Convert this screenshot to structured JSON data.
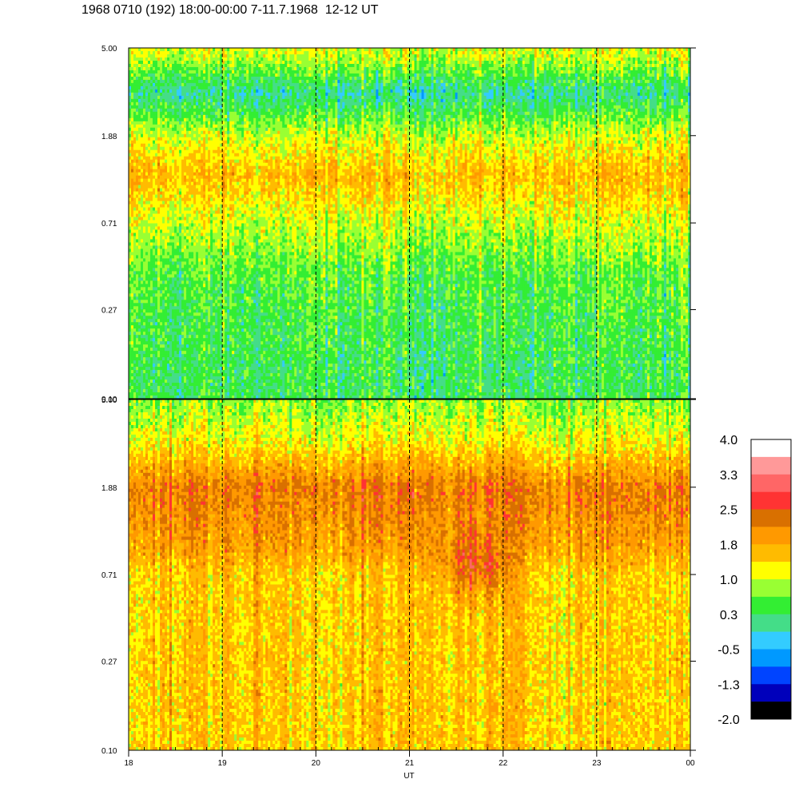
{
  "title": "1968 0710 (192) 18:00-00:00 7-11.7.1968  12-12 UT",
  "chart_data": [
    {
      "type": "heatmap",
      "panel": "upper",
      "x_range": [
        18,
        24
      ],
      "y_ticks": [
        "0.10",
        "0.27",
        "0.71",
        "1.88",
        "5.00"
      ],
      "y_scale": "log",
      "y_range": [
        0.1,
        5.0
      ],
      "bands": [
        {
          "y": 4.6,
          "level": 1.0
        },
        {
          "y": 3.0,
          "level": 0.0
        },
        {
          "y": 1.88,
          "level": 1.0
        },
        {
          "y": 1.2,
          "level": 1.6
        },
        {
          "y": 0.71,
          "level": 1.0
        },
        {
          "y": 0.4,
          "level": 0.5
        },
        {
          "y": 0.15,
          "level": 0.3
        }
      ],
      "vertical_markers_ut": [
        19,
        20,
        21,
        22,
        23
      ]
    },
    {
      "type": "heatmap",
      "panel": "lower",
      "x_range": [
        18,
        24
      ],
      "y_ticks": [
        "0.10",
        "0.27",
        "0.71",
        "1.88",
        "5.00"
      ],
      "y_scale": "log",
      "y_range": [
        0.1,
        5.0
      ],
      "bands": [
        {
          "y": 4.6,
          "level": 0.8
        },
        {
          "y": 3.0,
          "level": 1.3
        },
        {
          "y": 1.88,
          "level": 2.2
        },
        {
          "y": 1.0,
          "level": 1.9
        },
        {
          "y": 0.71,
          "level": 1.5
        },
        {
          "y": 0.3,
          "level": 1.5
        },
        {
          "y": 0.12,
          "level": 1.5
        }
      ],
      "hotspot": {
        "x": 21.7,
        "y": 0.8,
        "level": 2.5
      },
      "vertical_markers_ut": [
        19,
        20,
        21,
        22,
        23
      ]
    }
  ],
  "x_axis": {
    "label": "UT",
    "ticks": [
      "18",
      "19",
      "20",
      "21",
      "22",
      "23",
      "00"
    ]
  },
  "colorbar": {
    "labels": [
      "4.0",
      "3.3",
      "2.5",
      "1.8",
      "1.0",
      "0.3",
      "-0.5",
      "-1.3",
      "-2.0"
    ],
    "colors_top_to_bottom": [
      "#ffffff",
      "#ff9999",
      "#ff6666",
      "#ff3333",
      "#d97000",
      "#ff9900",
      "#ffbb00",
      "#ffff00",
      "#99ff33",
      "#33ee33",
      "#44dd88",
      "#33ccff",
      "#0099ff",
      "#0044ff",
      "#0000bb",
      "#000000"
    ],
    "min": -2.0,
    "max": 4.0
  }
}
